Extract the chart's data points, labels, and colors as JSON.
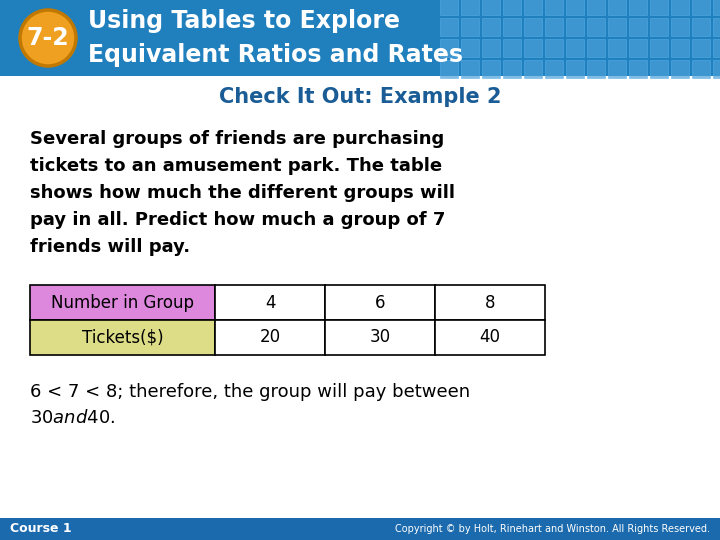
{
  "title_number": "7-2",
  "title_line1": "Using Tables to Explore",
  "title_line2": "Equivalent Ratios and Rates",
  "subtitle": "Check It Out: Example 2",
  "body_lines": [
    "Several groups of friends are purchasing",
    "tickets to an amusement park. The table",
    "shows how much the different groups will",
    "pay in all. Predict how much a group of 7",
    "friends will pay."
  ],
  "table_row1_label": "Number in Group",
  "table_row2_label": "Tickets($)",
  "table_row1_values": [
    "4",
    "6",
    "8"
  ],
  "table_row2_values": [
    "20",
    "30",
    "40"
  ],
  "conclusion_lines": [
    "6 < 7 < 8; therefore, the group will pay between",
    "$30 and $40."
  ],
  "footer_left": "Course 1",
  "footer_right": "Copyright © by Holt, Rinehart and Winston. All Rights Reserved.",
  "header_bg": "#2080be",
  "tile_color": "#4aa0d8",
  "tile_border_color": "#5ab0e8",
  "badge_fill": "#f0a020",
  "badge_border": "#c07800",
  "title_color": "#ffffff",
  "subtitle_color": "#1a5c96",
  "body_color": "#000000",
  "table_row1_bg": "#dd88dd",
  "table_row2_bg": "#dddd88",
  "table_cell_bg": "#ffffff",
  "table_border": "#000000",
  "footer_bg": "#1a6aad",
  "footer_color": "#ffffff",
  "slide_bg": "#ffffff"
}
